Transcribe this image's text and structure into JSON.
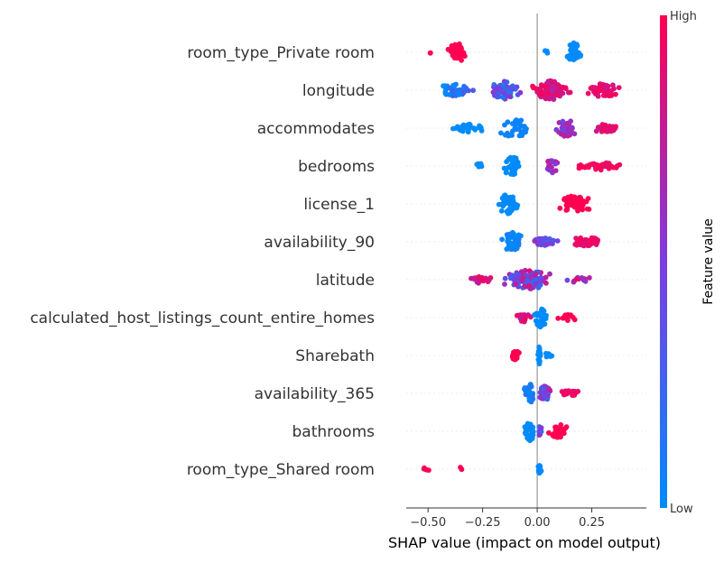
{
  "chart_data": {
    "type": "scatter",
    "subtype": "shap-beeswarm",
    "title": "",
    "xlabel": "SHAP value (impact on model output)",
    "ylabel": "",
    "xlim": [
      -0.6,
      0.5
    ],
    "xticks": [
      -0.5,
      -0.25,
      0.0,
      0.25
    ],
    "xtick_labels": [
      "−0.50",
      "−0.25",
      "0.00",
      "0.25"
    ],
    "grid": false,
    "colorbar": {
      "label": "Feature value",
      "high_label": "High",
      "low_label": "Low",
      "low_color": "#008BFB",
      "high_color": "#FF0052"
    },
    "features": [
      {
        "name": "room_type_Private room",
        "clusters": [
          {
            "lo": -0.51,
            "hi": -0.48,
            "n": 2,
            "f": 1.0,
            "s": 0.2
          },
          {
            "lo": -0.44,
            "hi": -0.3,
            "n": 40,
            "f": 1.0,
            "s": 1.0
          },
          {
            "lo": 0.02,
            "hi": 0.06,
            "n": 3,
            "f": 0.0,
            "s": 0.2
          },
          {
            "lo": 0.12,
            "hi": 0.22,
            "n": 50,
            "f": 0.0,
            "s": 1.0
          }
        ]
      },
      {
        "name": "longitude",
        "clusters": [
          {
            "lo": -0.5,
            "hi": -0.25,
            "n": 40,
            "f": 0.15,
            "fs": 0.2,
            "s": 0.6
          },
          {
            "lo": -0.25,
            "hi": -0.05,
            "n": 55,
            "f": 0.4,
            "fs": 0.3,
            "s": 0.9
          },
          {
            "lo": -0.05,
            "hi": 0.18,
            "n": 90,
            "f": 0.85,
            "fs": 0.15,
            "s": 1.0
          },
          {
            "lo": 0.18,
            "hi": 0.42,
            "n": 55,
            "f": 0.9,
            "fs": 0.1,
            "s": 0.7
          }
        ]
      },
      {
        "name": "accommodates",
        "clusters": [
          {
            "lo": -0.43,
            "hi": -0.2,
            "n": 30,
            "f": 0.0,
            "s": 0.4
          },
          {
            "lo": -0.2,
            "hi": -0.01,
            "n": 35,
            "f": 0.05,
            "s": 1.0
          },
          {
            "lo": 0.06,
            "hi": 0.2,
            "n": 40,
            "f": 0.6,
            "fs": 0.2,
            "s": 0.9
          },
          {
            "lo": 0.2,
            "hi": 0.42,
            "n": 25,
            "f": 0.9,
            "fs": 0.1,
            "s": 0.4
          }
        ]
      },
      {
        "name": "bedrooms",
        "clusters": [
          {
            "lo": -0.3,
            "hi": -0.24,
            "n": 6,
            "f": 0.0,
            "s": 0.3
          },
          {
            "lo": -0.18,
            "hi": -0.05,
            "n": 40,
            "f": 0.0,
            "s": 1.0
          },
          {
            "lo": 0.02,
            "hi": 0.12,
            "n": 20,
            "f": 0.6,
            "fs": 0.15,
            "s": 0.7
          },
          {
            "lo": 0.12,
            "hi": 0.45,
            "n": 40,
            "f": 0.95,
            "fs": 0.05,
            "s": 0.4
          }
        ]
      },
      {
        "name": "license_1",
        "clusters": [
          {
            "lo": -0.2,
            "hi": -0.07,
            "n": 45,
            "f": 0.0,
            "s": 1.0
          },
          {
            "lo": 0.08,
            "hi": 0.27,
            "n": 50,
            "f": 1.0,
            "s": 0.9
          }
        ]
      },
      {
        "name": "availability_90",
        "clusters": [
          {
            "lo": -0.18,
            "hi": -0.05,
            "n": 45,
            "f": 0.05,
            "fs": 0.05,
            "s": 1.0
          },
          {
            "lo": -0.05,
            "hi": 0.12,
            "n": 35,
            "f": 0.45,
            "fs": 0.2,
            "s": 0.4
          },
          {
            "lo": 0.12,
            "hi": 0.33,
            "n": 40,
            "f": 0.9,
            "fs": 0.1,
            "s": 0.5
          }
        ]
      },
      {
        "name": "latitude",
        "clusters": [
          {
            "lo": -0.33,
            "hi": -0.18,
            "n": 25,
            "f": 0.8,
            "fs": 0.2,
            "s": 0.4
          },
          {
            "lo": -0.18,
            "hi": 0.1,
            "n": 110,
            "f": 0.5,
            "fs": 0.35,
            "s": 1.0
          },
          {
            "lo": 0.1,
            "hi": 0.3,
            "n": 15,
            "f": 0.7,
            "fs": 0.3,
            "s": 0.3
          }
        ]
      },
      {
        "name": "calculated_host_listings_count_entire_homes",
        "clusters": [
          {
            "lo": -0.11,
            "hi": -0.02,
            "n": 20,
            "f": 0.85,
            "fs": 0.15,
            "s": 0.5
          },
          {
            "lo": -0.02,
            "hi": 0.05,
            "n": 40,
            "f": 0.0,
            "s": 1.0
          },
          {
            "lo": 0.07,
            "hi": 0.22,
            "n": 15,
            "f": 1.0,
            "s": 0.3
          }
        ]
      },
      {
        "name": "Sharebath",
        "clusters": [
          {
            "lo": -0.15,
            "hi": -0.06,
            "n": 18,
            "f": 1.0,
            "s": 0.5
          },
          {
            "lo": 0.0,
            "hi": 0.02,
            "n": 30,
            "f": 0.0,
            "s": 1.0
          },
          {
            "lo": 0.02,
            "hi": 0.08,
            "n": 8,
            "f": 0.0,
            "s": 0.3
          }
        ]
      },
      {
        "name": "availability_365",
        "clusters": [
          {
            "lo": -0.07,
            "hi": 0.0,
            "n": 30,
            "f": 0.1,
            "fs": 0.1,
            "s": 1.0
          },
          {
            "lo": 0.0,
            "hi": 0.07,
            "n": 35,
            "f": 0.5,
            "fs": 0.3,
            "s": 0.8
          },
          {
            "lo": 0.07,
            "hi": 0.24,
            "n": 20,
            "f": 0.95,
            "fs": 0.05,
            "s": 0.3
          }
        ]
      },
      {
        "name": "bathrooms",
        "clusters": [
          {
            "lo": -0.07,
            "hi": 0.0,
            "n": 35,
            "f": 0.0,
            "s": 1.0
          },
          {
            "lo": 0.0,
            "hi": 0.03,
            "n": 8,
            "f": 0.5,
            "fs": 0.3,
            "s": 0.6
          },
          {
            "lo": 0.03,
            "hi": 0.17,
            "n": 35,
            "f": 1.0,
            "s": 0.7
          }
        ]
      },
      {
        "name": "room_type_Shared room",
        "clusters": [
          {
            "lo": -0.57,
            "hi": -0.45,
            "n": 5,
            "f": 1.0,
            "s": 0.2
          },
          {
            "lo": -0.37,
            "hi": -0.33,
            "n": 2,
            "f": 1.0,
            "s": 0.2
          },
          {
            "lo": 0.0,
            "hi": 0.02,
            "n": 25,
            "f": 0.0,
            "s": 0.4
          }
        ]
      }
    ]
  }
}
